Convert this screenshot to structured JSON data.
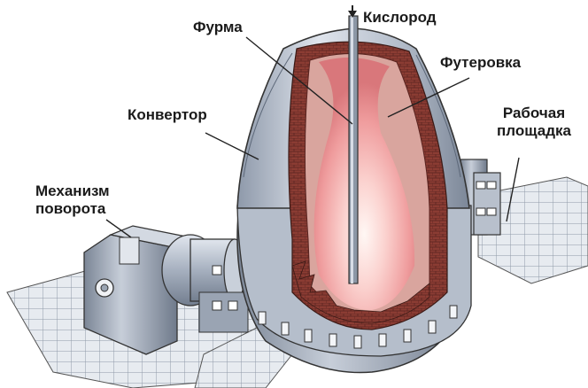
{
  "labels": {
    "oxygen": "Кислород",
    "lance": "Фурма",
    "lining": "Футеровка",
    "converter": "Конвертор",
    "platform_line1": "Рабочая",
    "platform_line2": "площадка",
    "mechanism_line1": "Механизм",
    "mechanism_line2": "поворота"
  },
  "colors": {
    "steel_light": "#d7dde6",
    "steel_mid": "#a9b4c3",
    "steel_dark": "#6e7a8c",
    "brick": "#8a3b32",
    "flame_core": "#ffe9e4",
    "flame_outer": "#f2a7a8",
    "floor_grid": "#b9c1cc"
  }
}
